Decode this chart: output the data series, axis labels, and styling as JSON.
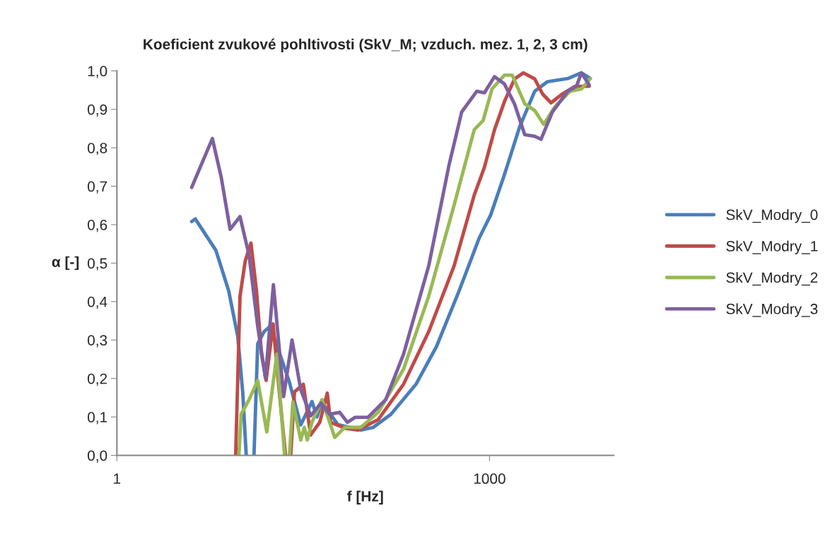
{
  "chart_data": {
    "type": "line",
    "title": "Koeficient zvukové pohltivosti (SkV_M; vzduch. mez. 1, 2, 3 cm)",
    "xlabel": "f [Hz]",
    "ylabel": "α [-]",
    "log": "x",
    "grid": false,
    "legend": "right",
    "marker": "none",
    "line_style": "solid",
    "xlim": [
      1,
      10000
    ],
    "xticks": [
      1,
      1000
    ],
    "ylim": [
      0,
      1.0
    ],
    "yticks": [
      {
        "value": 0,
        "label": "0,0"
      },
      {
        "value": 0.1,
        "label": "0,1"
      },
      {
        "value": 0.2,
        "label": "0,2"
      },
      {
        "value": 0.3,
        "label": "0,3"
      },
      {
        "value": 0.4,
        "label": "0,4"
      },
      {
        "value": 0.5,
        "label": "0,5"
      },
      {
        "value": 0.6,
        "label": "0,6"
      },
      {
        "value": 0.7,
        "label": "0,7"
      },
      {
        "value": 0.8,
        "label": "0,8"
      },
      {
        "value": 0.9,
        "label": "0,9"
      },
      {
        "value": 1.0,
        "label": "1,0"
      }
    ],
    "series": [
      {
        "name": "SkV_Modry_0",
        "color": "#4a7ebb",
        "x": [
          4.0,
          4.28,
          6.27,
          7.94,
          9.4,
          10.3,
          11.0,
          11.5,
          12.7,
          13.6,
          15.3,
          17.2,
          24.5,
          30.2,
          37.2,
          40.8,
          44.8,
          60,
          92,
          116,
          161,
          256,
          374,
          569,
          828,
          1021,
          1318,
          1750,
          2312,
          2930,
          4265,
          5495,
          6350
        ],
        "values": [
          0.608,
          0.615,
          0.533,
          0.428,
          0.309,
          0.165,
          0,
          null,
          0,
          0.29,
          0.322,
          0.336,
          0.19,
          0.079,
          0.14,
          0.1,
          0.139,
          0.08,
          0.066,
          0.073,
          0.107,
          0.185,
          0.283,
          0.428,
          0.566,
          0.625,
          0.73,
          0.855,
          0.947,
          0.972,
          0.98,
          0.995,
          0.982
        ]
      },
      {
        "name": "SkV_Modry_1",
        "color": "#be4b48",
        "x": [
          9.04,
          9.8,
          10.8,
          12.0,
          13.3,
          14.6,
          15.9,
          18.1,
          20.3,
          22.8,
          24.0,
          25.1,
          26.9,
          31.7,
          36.3,
          43,
          49.4,
          52.5,
          70,
          87,
          127,
          203,
          324,
          519,
          753,
          909,
          1097,
          1318,
          1590,
          1875,
          2312,
          2673,
          3126,
          3857,
          4887,
          6350
        ],
        "values": [
          0,
          0.414,
          0.506,
          0.552,
          0.428,
          0.263,
          0.195,
          0.342,
          0.165,
          0,
          null,
          0,
          0.165,
          0.185,
          0.053,
          0.086,
          0.162,
          0.086,
          0.07,
          0.066,
          0.093,
          0.185,
          0.322,
          0.493,
          0.677,
          0.749,
          0.847,
          0.92,
          0.979,
          0.995,
          0.979,
          0.94,
          0.917,
          0.94,
          0.96,
          0.96
        ]
      },
      {
        "name": "SkV_Modry_2",
        "color": "#98b954",
        "x": [
          9.6,
          10.0,
          11.6,
          13.6,
          16.1,
          19.4,
          22.4,
          23.5,
          24.5,
          26.1,
          30.2,
          32.3,
          34.1,
          37.2,
          44.8,
          56.7,
          68.6,
          92,
          127,
          203,
          324,
          519,
          753,
          889,
          1047,
          1318,
          1523,
          1923,
          2312,
          2730,
          3372,
          4455,
          5495,
          6490
        ],
        "values": [
          0,
          0.107,
          0.145,
          0.195,
          0.061,
          0.263,
          0,
          null,
          0,
          0.139,
          0.04,
          0.073,
          0.04,
          0.086,
          0.145,
          0.047,
          0.073,
          0.073,
          0.112,
          0.224,
          0.414,
          0.651,
          0.847,
          0.871,
          0.953,
          0.989,
          0.989,
          0.914,
          0.897,
          0.861,
          0.907,
          0.947,
          0.953,
          0.98
        ]
      },
      {
        "name": "SkV_Modry_3",
        "color": "#7d60a0",
        "x": [
          4.0,
          5.87,
          6.92,
          8.15,
          9.8,
          11.6,
          13.6,
          15.7,
          18.2,
          22.0,
          25.7,
          30.2,
          36.3,
          44,
          51.5,
          62.1,
          71.8,
          82.8,
          105,
          146,
          203,
          324,
          472,
          597,
          790,
          909,
          1097,
          1318,
          1590,
          1923,
          2312,
          2600,
          3207,
          4265,
          5012,
          5495,
          6350
        ],
        "values": [
          0.697,
          0.824,
          0.723,
          0.588,
          0.621,
          0.52,
          0.336,
          0.201,
          0.444,
          0.153,
          0.3,
          0.171,
          0.103,
          0.136,
          0.107,
          0.112,
          0.086,
          0.099,
          0.099,
          0.145,
          0.263,
          0.493,
          0.755,
          0.893,
          0.947,
          0.943,
          0.985,
          0.966,
          0.914,
          0.834,
          0.83,
          0.822,
          0.893,
          0.947,
          0.96,
          0.995,
          0.963
        ]
      }
    ]
  }
}
